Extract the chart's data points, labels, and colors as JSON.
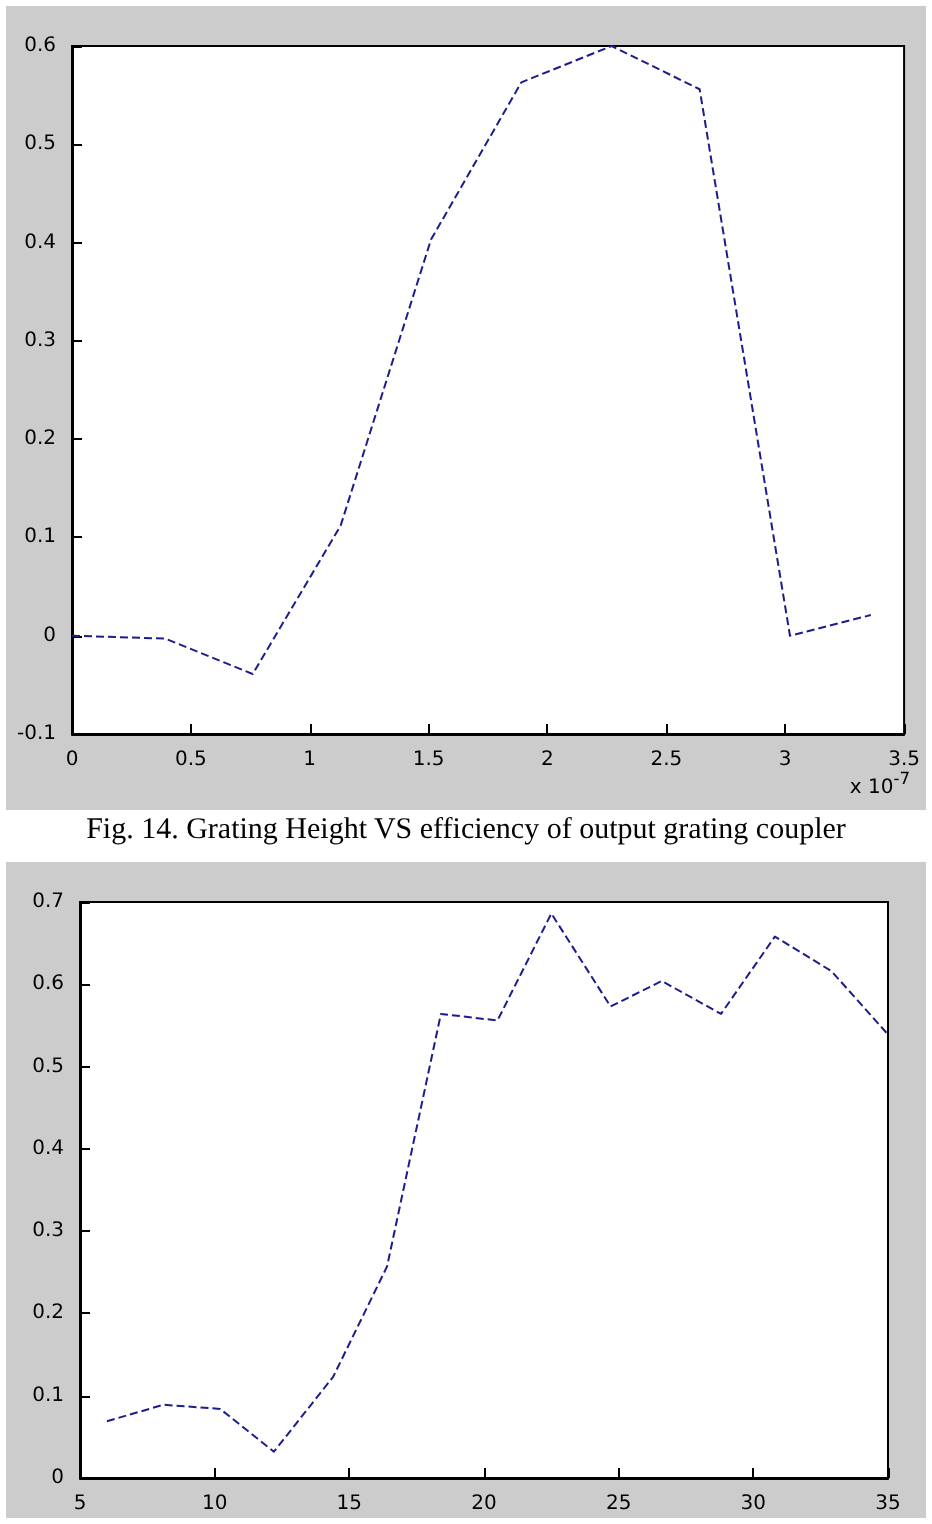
{
  "chart_data": [
    {
      "type": "line",
      "title": "Fig. 14. Grating Height VS efficiency of output grating coupler",
      "xlabel": "x 10$^{-7}$",
      "line_style": "dashed",
      "marker": "none",
      "x": [
        0,
        0.393,
        0.76,
        1.13,
        1.51,
        1.89,
        2.27,
        2.64,
        3.02,
        3.36
      ],
      "series": [
        {
          "color": "#1c1c8c",
          "values": [
            0,
            -0.003,
            -0.039,
            0.112,
            0.403,
            0.563,
            0.6,
            0.556,
            0,
            0.021
          ]
        }
      ],
      "xlim": [
        0,
        3.5
      ],
      "xticks": [
        0,
        0.5,
        1,
        1.5,
        2,
        2.5,
        3,
        3.5
      ],
      "ylim": [
        -0.1,
        0.6
      ],
      "yticks": [
        -0.1,
        0,
        0.1,
        0.2,
        0.3,
        0.4,
        0.5,
        0.6
      ]
    },
    {
      "type": "line",
      "line_style": "dashed",
      "marker": "none",
      "x": [
        6.0,
        8.1,
        10.2,
        12.2,
        14.4,
        16.4,
        18.4,
        20.5,
        22.5,
        24.7,
        26.6,
        28.8,
        30.8,
        32.9,
        35
      ],
      "series": [
        {
          "color": "#1c1c8c",
          "values": [
            0.069,
            0.089,
            0.084,
            0.032,
            0.123,
            0.257,
            0.564,
            0.556,
            0.686,
            0.573,
            0.604,
            0.564,
            0.658,
            0.616,
            0.539
          ]
        }
      ],
      "xlim": [
        5,
        35
      ],
      "xticks": [
        5,
        10,
        15,
        20,
        25,
        30,
        35
      ],
      "ylim": [
        0,
        0.7
      ],
      "yticks": [
        0,
        0.1,
        0.2,
        0.3,
        0.4,
        0.5,
        0.6,
        0.7
      ]
    }
  ]
}
